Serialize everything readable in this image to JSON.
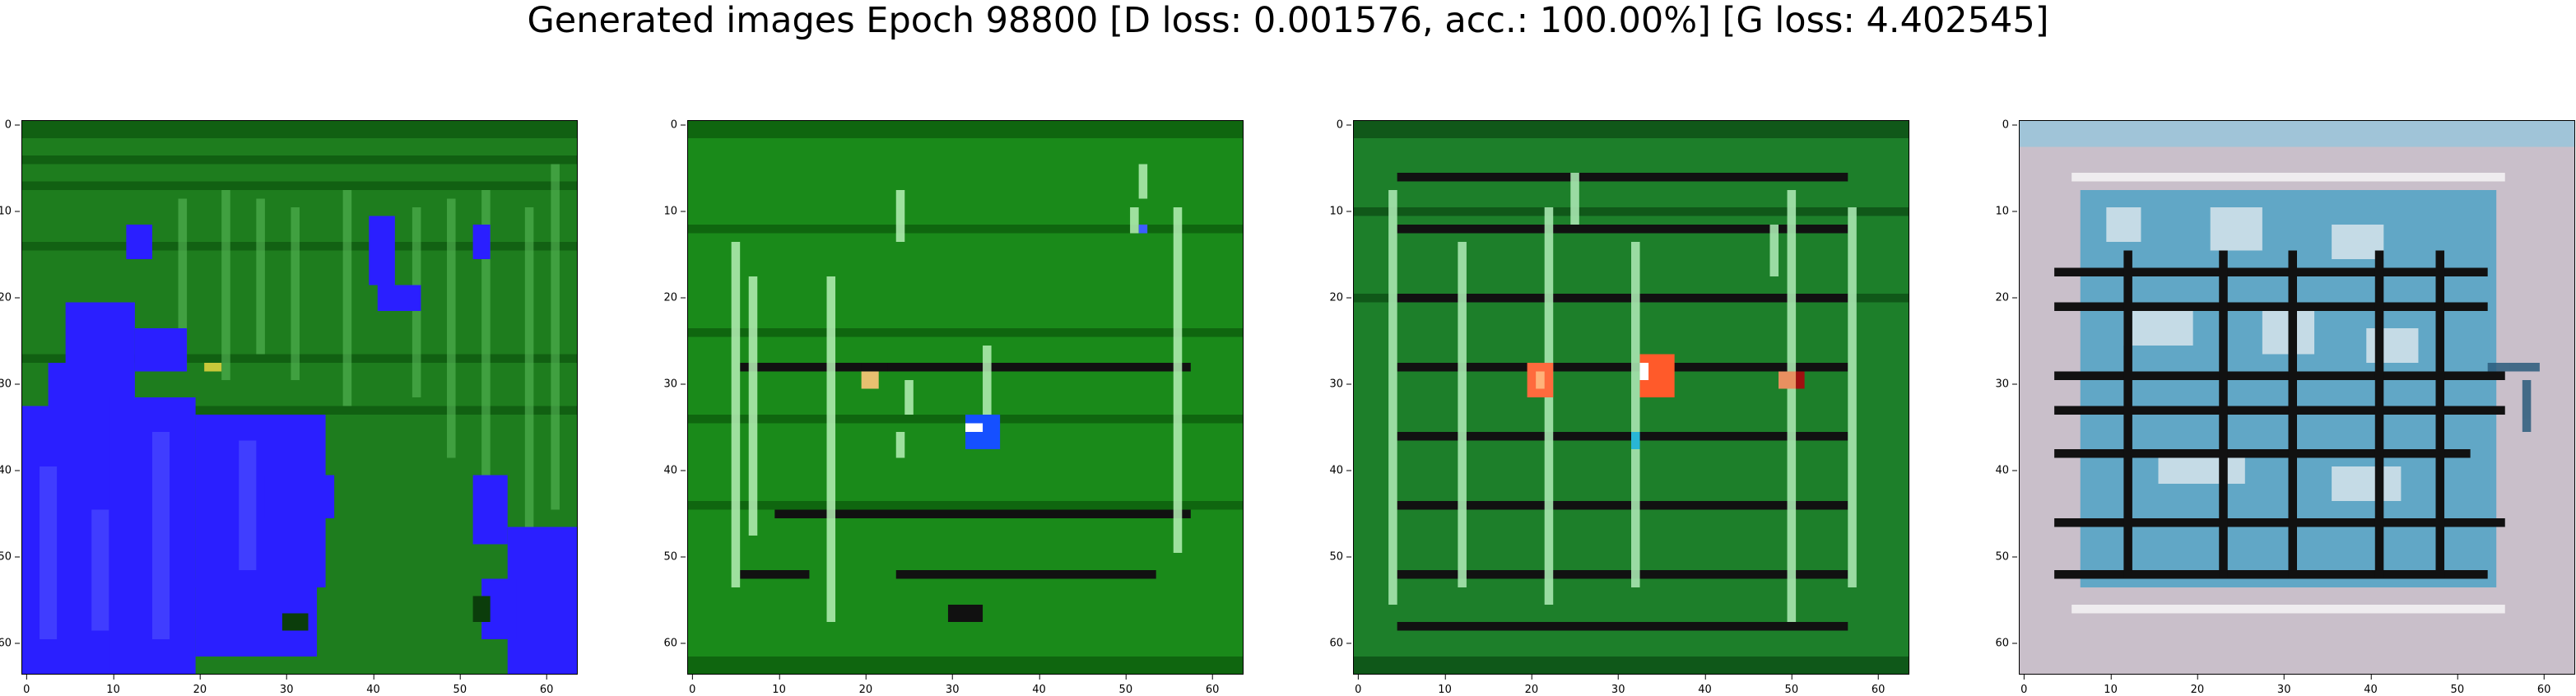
{
  "figure": {
    "title": "Generated images Epoch 98800 [D loss: 0.001576, acc.: 100.00%] [G loss: 4.402545]"
  },
  "axes": {
    "yticks": [
      "0",
      "10",
      "20",
      "30",
      "40",
      "50",
      "60"
    ],
    "xticks": [
      "0",
      "10",
      "20",
      "30",
      "40",
      "50",
      "60"
    ],
    "range": [
      0,
      63
    ]
  },
  "panels": [
    {
      "id": "sample-1",
      "base_color": "#1e7d1e",
      "description_colors": [
        "#2a1fff",
        "#1e7d1e",
        "#0d4f0d"
      ]
    },
    {
      "id": "sample-2",
      "base_color": "#1a8a1a",
      "description_colors": [
        "#1a8a1a",
        "#b6f0b6",
        "#111111"
      ]
    },
    {
      "id": "sample-3",
      "base_color": "#1d7f2a",
      "description_colors": [
        "#1d7f2a",
        "#ff6a3d",
        "#111111"
      ]
    },
    {
      "id": "sample-4",
      "base_color": "#c9bfca",
      "description_colors": [
        "#c9bfca",
        "#2c89b0",
        "#111111"
      ]
    }
  ]
}
